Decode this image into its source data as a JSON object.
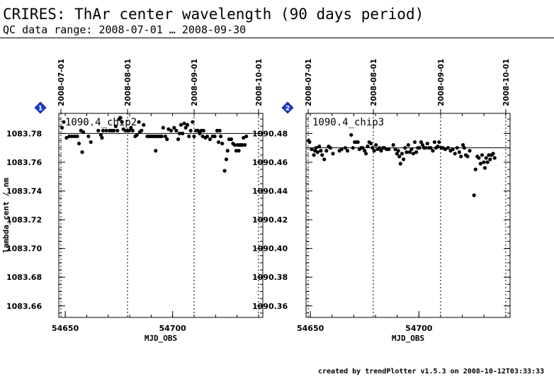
{
  "header": {
    "title": "CRIRES: ThAr center wavelength (90 days period)",
    "subtitle": "QC data range: 2008-07-01 … 2008-09-30"
  },
  "footer": {
    "text": "created by trendPlotter v1.5.3 on 2008-10-12T03:33:33"
  },
  "colors": {
    "marker_fill": "#1f3fd6",
    "points": "#000000",
    "axis": "#000000"
  },
  "chart_data": [
    {
      "type": "scatter",
      "panel_marker": "1",
      "label": "1090.4_chip2",
      "xlabel": "MJD_OBS",
      "ylabel": "lambda_cent / nm",
      "xlim": [
        54647,
        54742
      ],
      "ylim": [
        1083.652,
        1083.794
      ],
      "x_ticks": [
        54650,
        54700
      ],
      "y_ticks": [
        "1083.66",
        "1083.68",
        "1083.70",
        "1083.72",
        "1083.74",
        "1083.76",
        "1083.78"
      ],
      "date_ticks": [
        {
          "mjd": 54648,
          "label": "2008-07-01"
        },
        {
          "mjd": 54679,
          "label": "2008-08-01"
        },
        {
          "mjd": 54710,
          "label": "2008-09-01"
        },
        {
          "mjd": 54740,
          "label": "2008-10-01"
        }
      ],
      "reference_line": 1083.78,
      "points": [
        [
          54648.5,
          1083.784
        ],
        [
          54649.3,
          1083.788
        ],
        [
          54650.6,
          1083.777
        ],
        [
          54651.9,
          1083.778
        ],
        [
          54653.1,
          1083.778
        ],
        [
          54654.4,
          1083.778
        ],
        [
          54655.6,
          1083.778
        ],
        [
          54656.4,
          1083.773
        ],
        [
          54657.3,
          1083.782
        ],
        [
          54657.9,
          1083.767
        ],
        [
          54658.4,
          1083.781
        ],
        [
          54660.8,
          1083.778
        ],
        [
          54661.9,
          1083.774
        ],
        [
          54665.4,
          1083.782
        ],
        [
          54666.6,
          1083.779
        ],
        [
          54667.1,
          1083.777
        ],
        [
          54667.6,
          1083.782
        ],
        [
          54669.1,
          1083.782
        ],
        [
          54670.6,
          1083.782
        ],
        [
          54671.7,
          1083.782
        ],
        [
          54672.6,
          1083.782
        ],
        [
          54673.5,
          1083.785
        ],
        [
          54674.3,
          1083.782
        ],
        [
          54675.1,
          1083.79
        ],
        [
          54675.6,
          1083.791
        ],
        [
          54676.4,
          1083.788
        ],
        [
          54677.1,
          1083.783
        ],
        [
          54678.0,
          1083.782
        ],
        [
          54679.0,
          1083.782
        ],
        [
          54679.8,
          1083.782
        ],
        [
          54680.6,
          1083.784
        ],
        [
          54681.4,
          1083.782
        ],
        [
          54682.6,
          1083.778
        ],
        [
          54683.4,
          1083.779
        ],
        [
          54684.3,
          1083.788
        ],
        [
          54684.7,
          1083.781
        ],
        [
          54685.5,
          1083.782
        ],
        [
          54686.5,
          1083.786
        ],
        [
          54688.2,
          1083.778
        ],
        [
          54689.1,
          1083.778
        ],
        [
          54689.9,
          1083.778
        ],
        [
          54690.7,
          1083.778
        ],
        [
          54691.6,
          1083.778
        ],
        [
          54692.1,
          1083.768
        ],
        [
          54692.4,
          1083.778
        ],
        [
          54693.3,
          1083.778
        ],
        [
          54694.2,
          1083.778
        ],
        [
          54694.9,
          1083.778
        ],
        [
          54695.6,
          1083.784
        ],
        [
          54696.6,
          1083.778
        ],
        [
          54697.4,
          1083.776
        ],
        [
          54698.1,
          1083.783
        ],
        [
          54699.3,
          1083.782
        ],
        [
          54700.7,
          1083.784
        ],
        [
          54701.7,
          1083.782
        ],
        [
          54702.6,
          1083.776
        ],
        [
          54703.2,
          1083.78
        ],
        [
          54703.9,
          1083.786
        ],
        [
          54704.6,
          1083.78
        ],
        [
          54705.4,
          1083.787
        ],
        [
          54706.1,
          1083.784
        ],
        [
          54706.9,
          1083.786
        ],
        [
          54707.6,
          1083.778
        ],
        [
          54708.4,
          1083.782
        ],
        [
          54709.3,
          1083.788
        ],
        [
          54710.0,
          1083.778
        ],
        [
          54710.9,
          1083.782
        ],
        [
          54711.8,
          1083.782
        ],
        [
          54712.6,
          1083.78
        ],
        [
          54713.4,
          1083.782
        ],
        [
          54714.0,
          1083.778
        ],
        [
          54714.4,
          1083.782
        ],
        [
          54715.3,
          1083.777
        ],
        [
          54716.1,
          1083.778
        ],
        [
          54717.4,
          1083.776
        ],
        [
          54718.6,
          1083.778
        ],
        [
          54719.6,
          1083.778
        ],
        [
          54720.7,
          1083.782
        ],
        [
          54721.4,
          1083.774
        ],
        [
          54721.9,
          1083.782
        ],
        [
          54722.4,
          1083.778
        ],
        [
          54723.1,
          1083.773
        ],
        [
          54724.2,
          1083.754
        ],
        [
          54725.0,
          1083.762
        ],
        [
          54725.6,
          1083.768
        ],
        [
          54726.3,
          1083.776
        ],
        [
          54727.3,
          1083.776
        ],
        [
          54728.1,
          1083.773
        ],
        [
          54728.9,
          1083.772
        ],
        [
          54729.6,
          1083.768
        ],
        [
          54730.3,
          1083.772
        ],
        [
          54730.8,
          1083.768
        ],
        [
          54731.2,
          1083.772
        ],
        [
          54731.8,
          1083.772
        ],
        [
          54732.4,
          1083.772
        ],
        [
          54733.0,
          1083.777
        ],
        [
          54733.6,
          1083.772
        ],
        [
          54734.3,
          1083.778
        ]
      ]
    },
    {
      "type": "scatter",
      "panel_marker": "2",
      "label": "1090.4_chip3",
      "xlabel": "MJD_OBS",
      "ylabel": "",
      "xlim": [
        54648,
        54742
      ],
      "ylim": [
        1090.352,
        1090.494
      ],
      "x_ticks": [
        54650,
        54700
      ],
      "y_ticks": [
        "1090.36",
        "1090.38",
        "1090.40",
        "1090.42",
        "1090.44",
        "1090.46",
        "1090.48"
      ],
      "date_ticks": [
        {
          "mjd": 54649,
          "label": "2008-07-01"
        },
        {
          "mjd": 54679,
          "label": "2008-08-01"
        },
        {
          "mjd": 54710,
          "label": "2008-09-01"
        },
        {
          "mjd": 54740,
          "label": "2008-10-01"
        }
      ],
      "reference_line": 1090.47,
      "points": [
        [
          54649.2,
          1090.475
        ],
        [
          54649.6,
          1090.474
        ],
        [
          54650.6,
          1090.469
        ],
        [
          54651.6,
          1090.465
        ],
        [
          54652.1,
          1090.468
        ],
        [
          54652.6,
          1090.47
        ],
        [
          54653.3,
          1090.467
        ],
        [
          54654.1,
          1090.471
        ],
        [
          54654.8,
          1090.468
        ],
        [
          54655.4,
          1090.465
        ],
        [
          54656.4,
          1090.462
        ],
        [
          54657.4,
          1090.468
        ],
        [
          54658.4,
          1090.471
        ],
        [
          54659.2,
          1090.47
        ],
        [
          54660.4,
          1090.466
        ],
        [
          54663.4,
          1090.468
        ],
        [
          54664.4,
          1090.469
        ],
        [
          54666.1,
          1090.47
        ],
        [
          54667.1,
          1090.468
        ],
        [
          54668.8,
          1090.479
        ],
        [
          54669.6,
          1090.47
        ],
        [
          54670.4,
          1090.474
        ],
        [
          54671.1,
          1090.474
        ],
        [
          54671.9,
          1090.474
        ],
        [
          54672.6,
          1090.469
        ],
        [
          54673.4,
          1090.47
        ],
        [
          54674.1,
          1090.47
        ],
        [
          54675.0,
          1090.468
        ],
        [
          54675.6,
          1090.466
        ],
        [
          54676.4,
          1090.471
        ],
        [
          54677.1,
          1090.474
        ],
        [
          54677.9,
          1090.473
        ],
        [
          54678.6,
          1090.47
        ],
        [
          54679.4,
          1090.468
        ],
        [
          54680.2,
          1090.472
        ],
        [
          54681.0,
          1090.469
        ],
        [
          54681.8,
          1090.47
        ],
        [
          54682.6,
          1090.468
        ],
        [
          54683.5,
          1090.47
        ],
        [
          54684.1,
          1090.47
        ],
        [
          54685.1,
          1090.469
        ],
        [
          54686.1,
          1090.469
        ],
        [
          54688.2,
          1090.472
        ],
        [
          54689.1,
          1090.469
        ],
        [
          54689.9,
          1090.466
        ],
        [
          54690.5,
          1090.468
        ],
        [
          54691.0,
          1090.464
        ],
        [
          54691.5,
          1090.459
        ],
        [
          54692.2,
          1090.466
        ],
        [
          54692.9,
          1090.462
        ],
        [
          54693.6,
          1090.47
        ],
        [
          54694.3,
          1090.467
        ],
        [
          54695.1,
          1090.472
        ],
        [
          54695.8,
          1090.467
        ],
        [
          54696.6,
          1090.469
        ],
        [
          54697.4,
          1090.466
        ],
        [
          54698.1,
          1090.474
        ],
        [
          54698.8,
          1090.467
        ],
        [
          54699.5,
          1090.47
        ],
        [
          54700.2,
          1090.47
        ],
        [
          54701.0,
          1090.474
        ],
        [
          54701.7,
          1090.472
        ],
        [
          54702.4,
          1090.47
        ],
        [
          54703.1,
          1090.47
        ],
        [
          54703.9,
          1090.473
        ],
        [
          54704.6,
          1090.47
        ],
        [
          54705.4,
          1090.47
        ],
        [
          54706.4,
          1090.468
        ],
        [
          54707.2,
          1090.474
        ],
        [
          54707.9,
          1090.47
        ],
        [
          54708.7,
          1090.471
        ],
        [
          54709.3,
          1090.474
        ],
        [
          54710.3,
          1090.47
        ],
        [
          54711.1,
          1090.47
        ],
        [
          54712.1,
          1090.469
        ],
        [
          54713.4,
          1090.47
        ],
        [
          54714.6,
          1090.468
        ],
        [
          54715.6,
          1090.469
        ],
        [
          54716.6,
          1090.466
        ],
        [
          54717.6,
          1090.47
        ],
        [
          54718.6,
          1090.467
        ],
        [
          54719.4,
          1090.464
        ],
        [
          54720.3,
          1090.472
        ],
        [
          54720.9,
          1090.47
        ],
        [
          54721.6,
          1090.465
        ],
        [
          54722.4,
          1090.464
        ],
        [
          54723.4,
          1090.468
        ],
        [
          54725.4,
          1090.437
        ],
        [
          54726.1,
          1090.455
        ],
        [
          54726.9,
          1090.464
        ],
        [
          54727.6,
          1090.463
        ],
        [
          54728.4,
          1090.459
        ],
        [
          54729.1,
          1090.465
        ],
        [
          54729.9,
          1090.46
        ],
        [
          54730.4,
          1090.456
        ],
        [
          54731.0,
          1090.463
        ],
        [
          54731.6,
          1090.46
        ],
        [
          54732.2,
          1090.465
        ],
        [
          54732.8,
          1090.462
        ],
        [
          54733.5,
          1090.465
        ],
        [
          54734.2,
          1090.466
        ],
        [
          54734.9,
          1090.463
        ]
      ]
    }
  ]
}
